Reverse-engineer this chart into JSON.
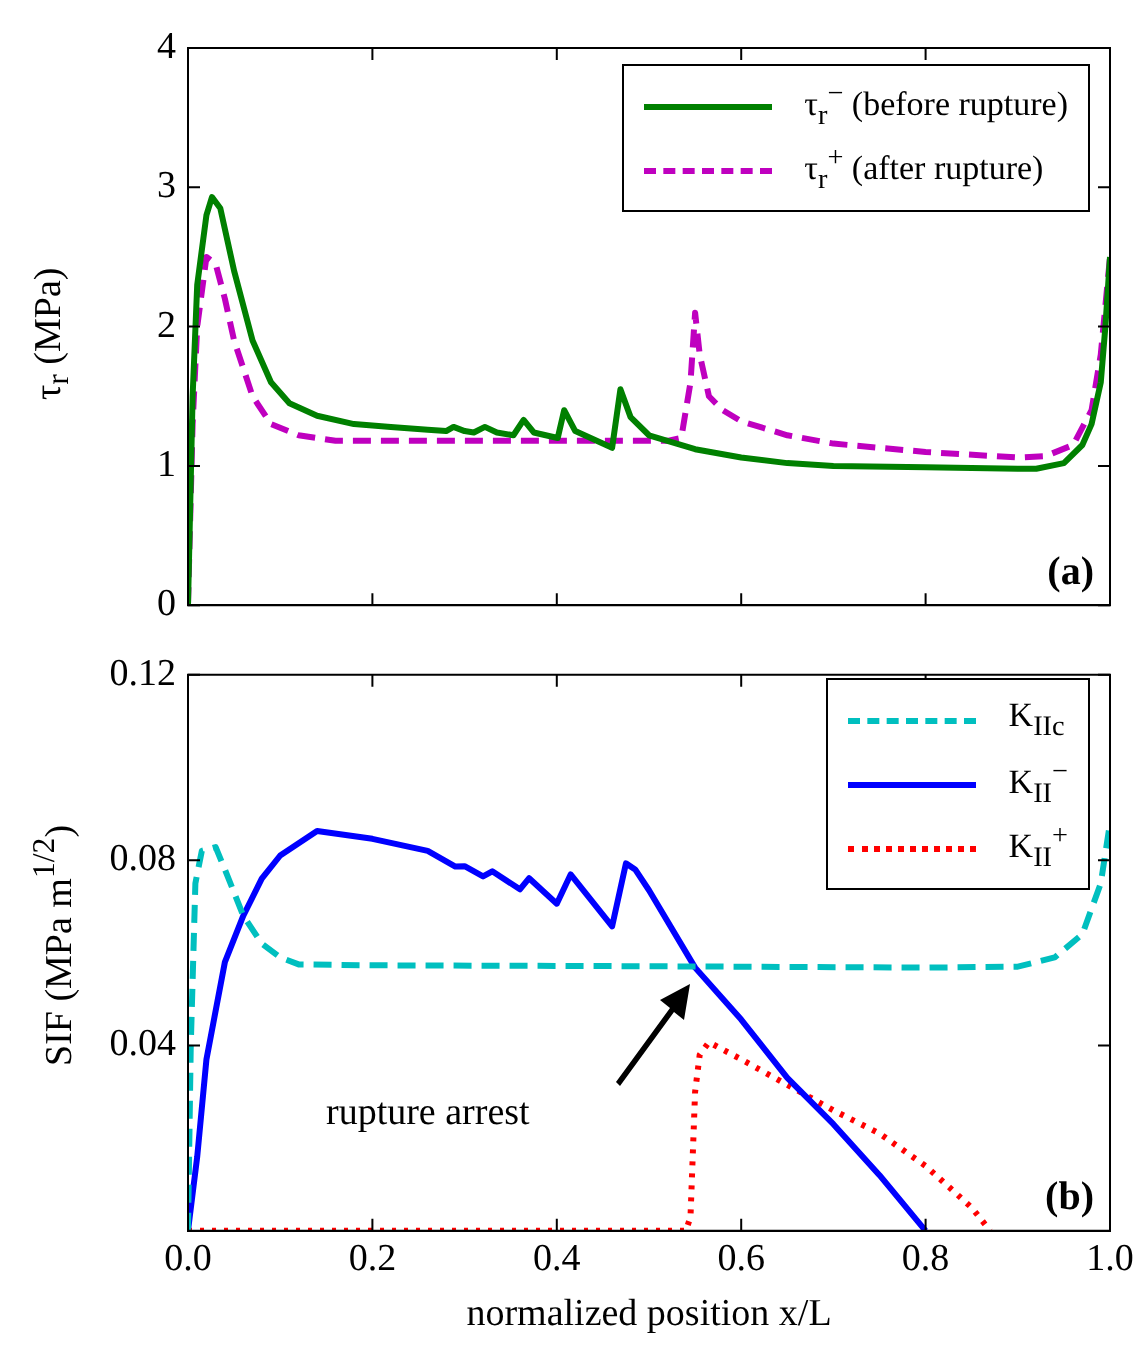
{
  "chart_data": [
    {
      "type": "line",
      "ylabel": "τ$_{r}$ (MPa)",
      "xlim": [
        0,
        1
      ],
      "ylim": [
        0,
        4
      ],
      "xticks": [
        0,
        0.2,
        0.4,
        0.6,
        0.8,
        1
      ],
      "yticks": [
        0,
        1,
        2,
        3,
        4
      ],
      "tick_labels": "y",
      "legend": "top right",
      "annotations": [
        "(a)"
      ],
      "series": [
        {
          "name": "τ$_{r}$$^{−}$ (before rupture)",
          "color": "#008000",
          "line_style": "solid",
          "x": [
            0,
            0.005,
            0.01,
            0.02,
            0.026,
            0.035,
            0.05,
            0.07,
            0.09,
            0.11,
            0.14,
            0.18,
            0.22,
            0.26,
            0.28,
            0.288,
            0.3,
            0.31,
            0.322,
            0.335,
            0.353,
            0.364,
            0.375,
            0.401,
            0.408,
            0.42,
            0.46,
            0.469,
            0.48,
            0.5,
            0.55,
            0.6,
            0.65,
            0.7,
            0.8,
            0.9,
            0.92,
            0.95,
            0.97,
            0.98,
            0.99,
            0.995,
            1
          ],
          "values": [
            0,
            1.5,
            2.3,
            2.8,
            2.93,
            2.85,
            2.4,
            1.9,
            1.6,
            1.45,
            1.36,
            1.3,
            1.28,
            1.26,
            1.25,
            1.28,
            1.25,
            1.24,
            1.28,
            1.24,
            1.22,
            1.33,
            1.24,
            1.2,
            1.4,
            1.25,
            1.13,
            1.55,
            1.35,
            1.22,
            1.12,
            1.06,
            1.02,
            1,
            0.99,
            0.98,
            0.98,
            1.02,
            1.15,
            1.3,
            1.6,
            2,
            2.5
          ]
        },
        {
          "name": "τ$_{r}$$^{+}$ (after rupture)",
          "color": "#bf00bf",
          "line_style": "dashed",
          "x": [
            0,
            0.005,
            0.01,
            0.02,
            0.03,
            0.04,
            0.05,
            0.07,
            0.09,
            0.12,
            0.16,
            0.2,
            0.3,
            0.4,
            0.52,
            0.535,
            0.545,
            0.55,
            0.555,
            0.565,
            0.58,
            0.6,
            0.65,
            0.7,
            0.8,
            0.9,
            0.93,
            0.96,
            0.98,
            0.99,
            1
          ],
          "values": [
            0,
            1.3,
            2,
            2.5,
            2.45,
            2.2,
            1.9,
            1.5,
            1.3,
            1.22,
            1.18,
            1.18,
            1.18,
            1.18,
            1.18,
            1.2,
            1.6,
            2.1,
            1.8,
            1.5,
            1.4,
            1.32,
            1.22,
            1.16,
            1.1,
            1.06,
            1.07,
            1.15,
            1.4,
            1.8,
            2.5
          ]
        }
      ]
    },
    {
      "type": "line",
      "xlabel": "normalized position x/L",
      "ylabel": "SIF (MPa m$^{1/2}$)",
      "xlim": [
        0,
        1
      ],
      "ylim": [
        0,
        0.12
      ],
      "xticks": [
        {
          "value": 0,
          "label": "0.0"
        },
        {
          "value": 0.2,
          "label": "0.2"
        },
        {
          "value": 0.4,
          "label": "0.4"
        },
        {
          "value": 0.6,
          "label": "0.6"
        },
        {
          "value": 0.8,
          "label": "0.8"
        },
        {
          "value": 1,
          "label": "1.0"
        }
      ],
      "yticks": [
        0.04,
        0.08,
        0.12
      ],
      "legend": "top right",
      "annotations": [
        "(b)",
        "rupture arrest"
      ],
      "series": [
        {
          "name": "K$_{IIc}$",
          "color": "#00bfbf",
          "line_style": "dashed",
          "x": [
            0,
            0.003,
            0.008,
            0.015,
            0.03,
            0.04,
            0.06,
            0.08,
            0.1,
            0.12,
            0.2,
            0.5,
            0.8,
            0.9,
            0.94,
            0.97,
            0.99,
            1
          ],
          "values": [
            0,
            0.04,
            0.075,
            0.082,
            0.0828,
            0.078,
            0.068,
            0.062,
            0.059,
            0.0575,
            0.0573,
            0.0571,
            0.0568,
            0.057,
            0.059,
            0.064,
            0.075,
            0.088
          ]
        },
        {
          "name": "K$_{II}$$^{−}$",
          "color": "#0000ff",
          "line_style": "solid",
          "x": [
            0,
            0.01,
            0.02,
            0.04,
            0.06,
            0.08,
            0.1,
            0.14,
            0.2,
            0.26,
            0.29,
            0.3,
            0.32,
            0.33,
            0.36,
            0.37,
            0.4,
            0.415,
            0.46,
            0.475,
            0.485,
            0.5,
            0.55,
            0.6,
            0.65,
            0.7,
            0.75,
            0.8
          ],
          "values": [
            0,
            0.016,
            0.037,
            0.058,
            0.068,
            0.076,
            0.081,
            0.0863,
            0.0846,
            0.082,
            0.0786,
            0.0787,
            0.0765,
            0.0776,
            0.0737,
            0.0761,
            0.0706,
            0.0769,
            0.0657,
            0.0793,
            0.078,
            0.0735,
            0.0568,
            0.0456,
            0.033,
            0.023,
            0.012,
            0
          ]
        },
        {
          "name": "K$_{II}$$^{+}$",
          "color": "#ff0000",
          "line_style": "dotted",
          "x": [
            0,
            0.54,
            0.545,
            0.55,
            0.555,
            0.565,
            0.6,
            0.65,
            0.7,
            0.75,
            0.8,
            0.85,
            0.87
          ],
          "values": [
            0,
            0,
            0.003,
            0.03,
            0.038,
            0.0407,
            0.037,
            0.0315,
            0.026,
            0.021,
            0.014,
            0.005,
            0
          ]
        }
      ]
    }
  ]
}
